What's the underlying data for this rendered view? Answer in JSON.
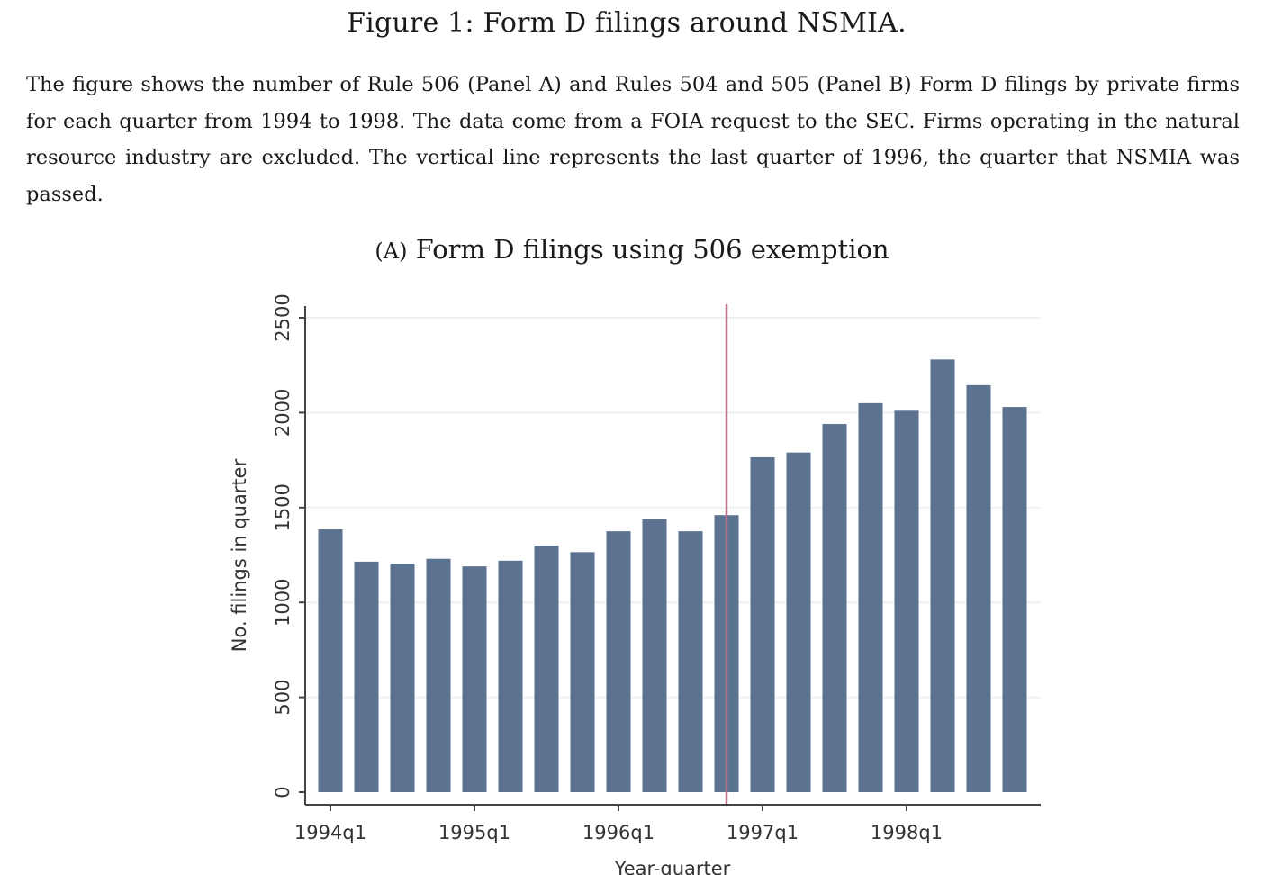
{
  "figure": {
    "title": "Figure 1: Form D filings around NSMIA.",
    "caption": "The figure shows the number of Rule 506 (Panel A) and Rules 504 and 505 (Panel B) Form D filings by private firms for each quarter from 1994 to 1998. The data come from a FOIA request to the SEC. Firms operating in the natural resource industry are excluded. The vertical line represents the last quarter of 1996, the quarter that NSMIA was passed."
  },
  "panel": {
    "letter": "(A)",
    "title": "Form D filings using 506 exemption"
  },
  "chart_data": {
    "type": "bar",
    "categories": [
      "1994q1",
      "1994q2",
      "1994q3",
      "1994q4",
      "1995q1",
      "1995q2",
      "1995q3",
      "1995q4",
      "1996q1",
      "1996q2",
      "1996q3",
      "1996q4",
      "1997q1",
      "1997q2",
      "1997q3",
      "1997q4",
      "1998q1",
      "1998q2",
      "1998q3",
      "1998q4"
    ],
    "values": [
      1385,
      1215,
      1205,
      1230,
      1190,
      1220,
      1300,
      1265,
      1375,
      1440,
      1375,
      1460,
      1765,
      1790,
      1940,
      2050,
      2010,
      2280,
      2145,
      2030
    ],
    "xlabel": "Year-quarter",
    "ylabel": "No. filings in quarter",
    "ylim": [
      0,
      2500
    ],
    "yticks": [
      0,
      500,
      1000,
      1500,
      2000,
      2500
    ],
    "xticks": [
      "1994q1",
      "1995q1",
      "1996q1",
      "1997q1",
      "1998q1"
    ],
    "vertical_line_at": "1996q4",
    "grid": true,
    "colors": {
      "bars": "#5b7290",
      "vertical_line": "#c06e8c",
      "grid": "#eef0f3",
      "axis": "#444444"
    }
  }
}
